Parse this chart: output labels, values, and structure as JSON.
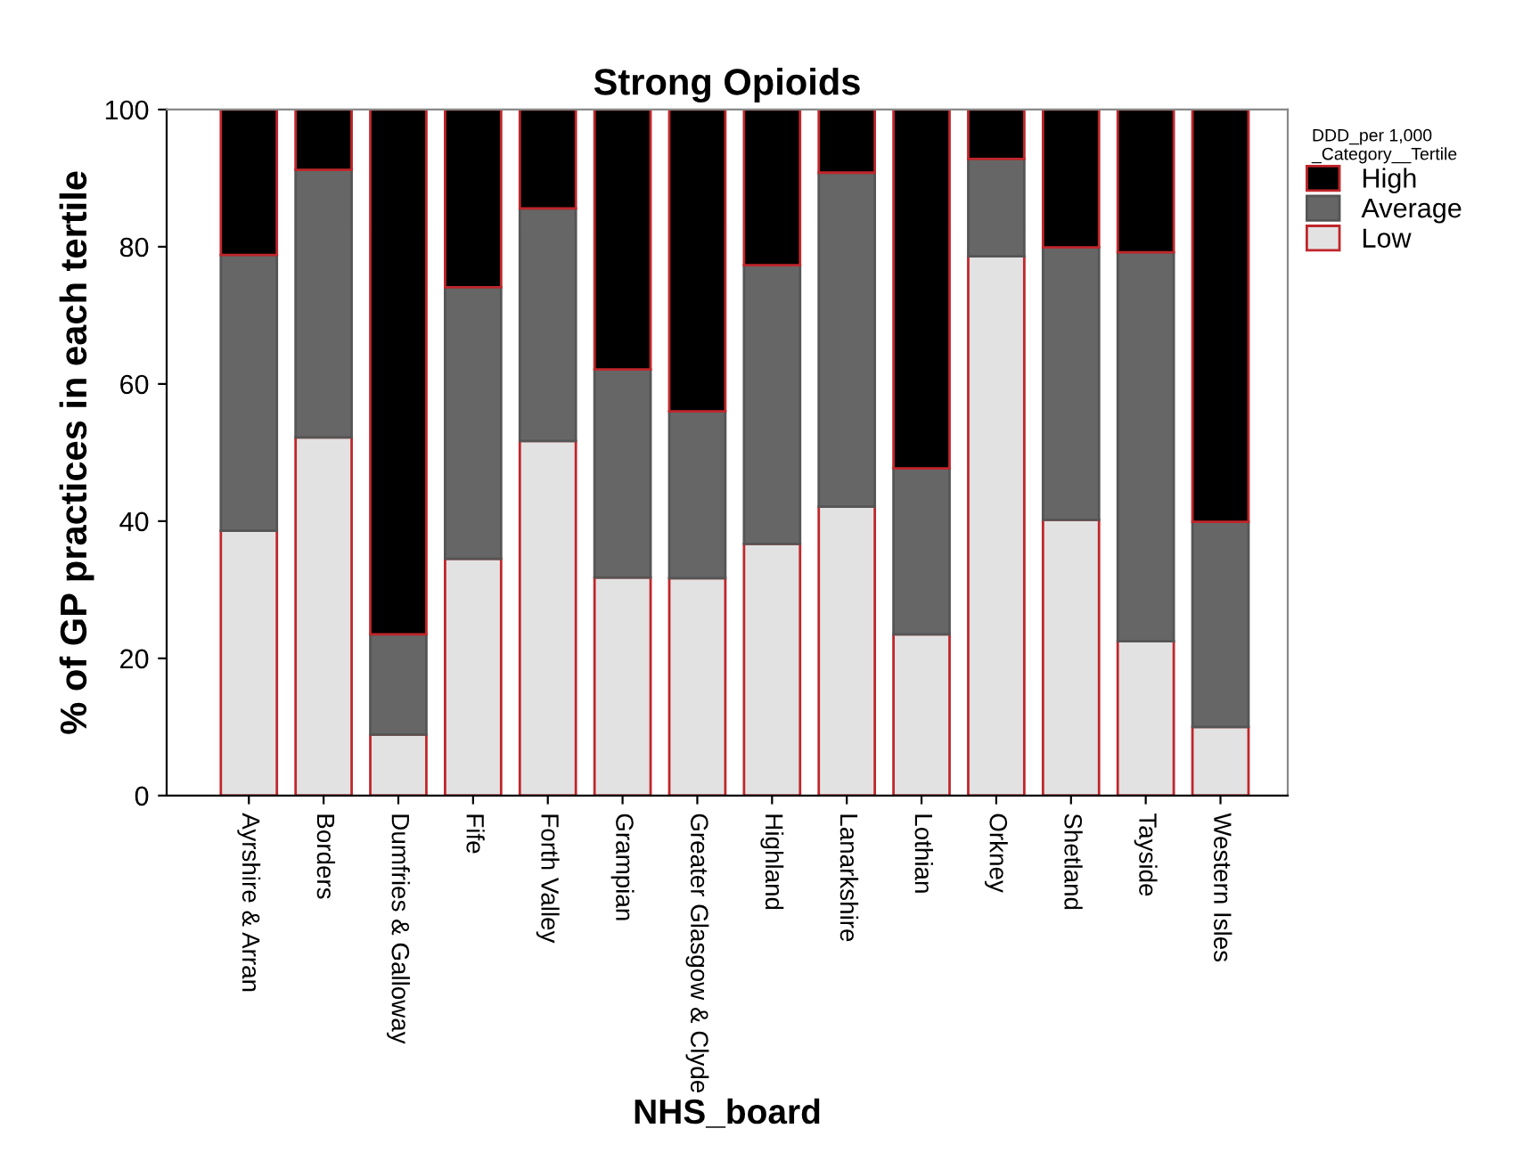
{
  "chart_data": {
    "type": "bar",
    "title": "Strong Opioids",
    "xlabel": "NHS_board",
    "ylabel": "% of GP practices in each tertile",
    "legend_title": "DDD_per 1,000\n_Category__Tertile",
    "categories": [
      "Ayrshire & Arran",
      "Borders",
      "Dumfries & Galloway",
      "Fife",
      "Forth Valley",
      "Grampian",
      "Greater Glasgow & Clyde",
      "Highland",
      "Lanarkshire",
      "Lothian",
      "Orkney",
      "Shetland",
      "Tayside",
      "Western Isles"
    ],
    "stacked": true,
    "ylim": [
      0,
      100
    ],
    "yticks": [
      0,
      20,
      40,
      60,
      80,
      100
    ],
    "grid": false,
    "legend": "top right",
    "series": [
      {
        "name": "Low",
        "color": "#e2e2e2",
        "values": [
          38.6,
          52.2,
          8.9,
          34.5,
          51.7,
          31.8,
          31.7,
          36.7,
          42.1,
          23.5,
          78.6,
          40.2,
          22.5,
          10.0
        ]
      },
      {
        "name": "Average",
        "color": "#666666",
        "values": [
          40.2,
          39.0,
          14.6,
          39.6,
          33.9,
          30.3,
          24.3,
          40.6,
          48.7,
          24.2,
          14.2,
          39.7,
          56.7,
          29.9
        ]
      },
      {
        "name": "High",
        "color": "#000000",
        "values": [
          21.2,
          8.8,
          76.5,
          25.9,
          14.4,
          37.9,
          44.0,
          22.7,
          9.2,
          52.3,
          7.2,
          20.1,
          20.8,
          60.1
        ]
      }
    ]
  }
}
